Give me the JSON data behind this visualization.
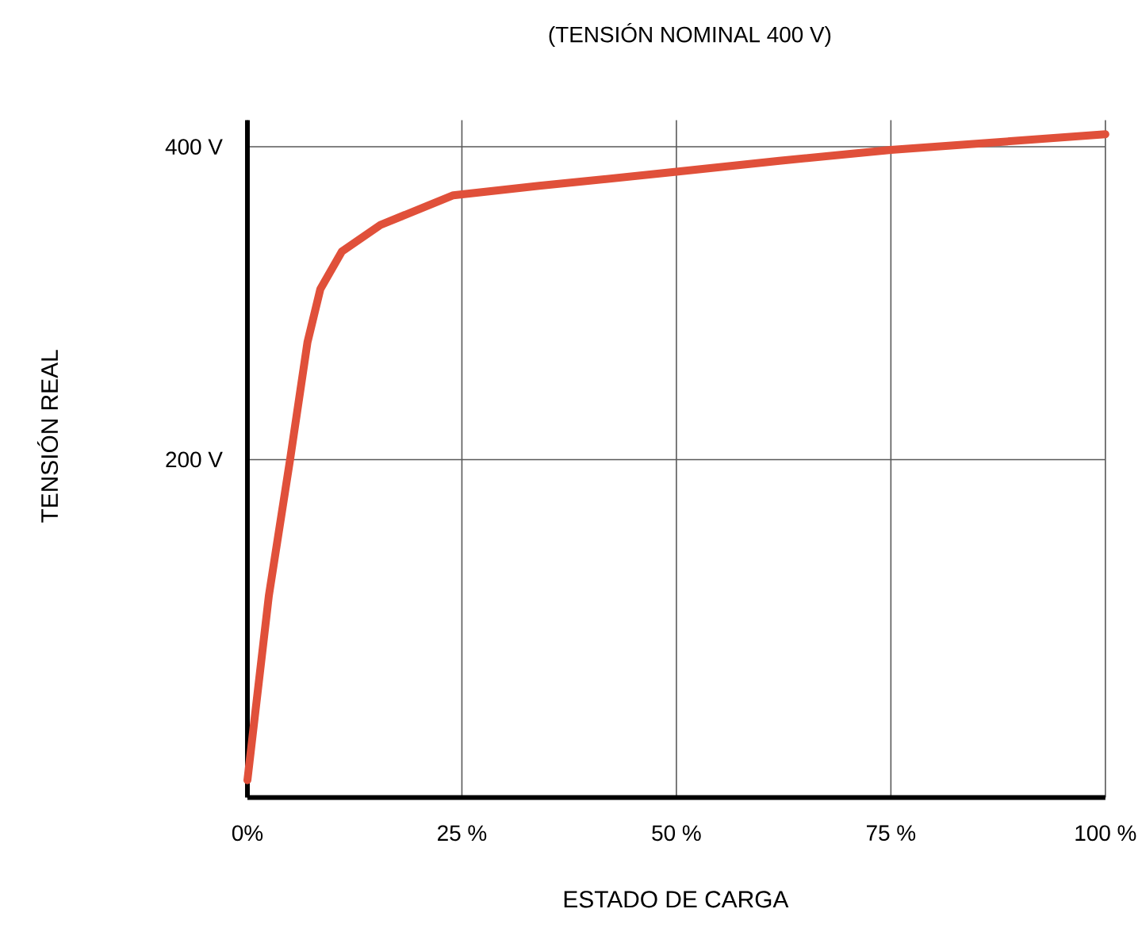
{
  "chart_data": {
    "type": "line",
    "title": "(TENSIÓN NOMINAL 400 V)",
    "xlabel": "ESTADO DE CARGA",
    "ylabel": "TENSIÓN  REAL",
    "x": [
      0,
      2.5,
      5,
      7,
      8.5,
      11,
      15.5,
      24,
      34,
      50,
      62,
      75,
      100
    ],
    "series": [
      {
        "color": "#e0503a",
        "values": [
          -5,
          113,
          201,
          275,
          309,
          333,
          350,
          369,
          375,
          384,
          391,
          398,
          408
        ]
      }
    ],
    "xlim": [
      0,
      100
    ],
    "ylim": [
      -16,
      417
    ],
    "xticks": [
      {
        "value": 0,
        "label": "0%"
      },
      {
        "value": 25,
        "label": "25 %"
      },
      {
        "value": 50,
        "label": "50 %"
      },
      {
        "value": 75,
        "label": "75 %"
      },
      {
        "value": 100,
        "label": "100 %"
      }
    ],
    "yticks": [
      {
        "value": 200,
        "label": "200 V"
      },
      {
        "value": 400,
        "label": "400 V"
      }
    ],
    "grid": true
  }
}
